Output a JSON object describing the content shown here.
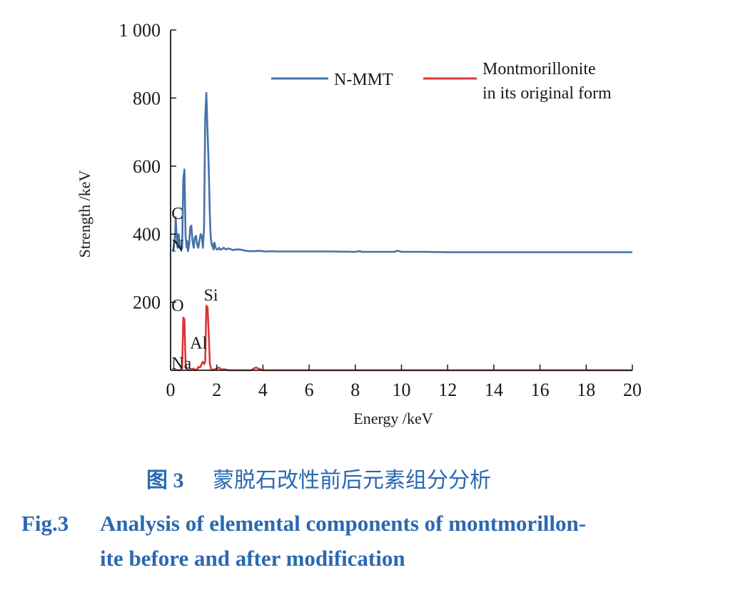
{
  "chart_data": {
    "type": "line",
    "title": "",
    "xlabel": "Energy /keV",
    "ylabel": "Strength /keV",
    "xlim": [
      0,
      20
    ],
    "ylim": [
      0,
      1000
    ],
    "x_ticks": [
      0,
      2,
      4,
      6,
      8,
      10,
      12,
      14,
      16,
      18,
      20
    ],
    "x_tick_labels": [
      "0",
      "2",
      "4",
      "6",
      "8",
      "10",
      "12",
      "14",
      "16",
      "18",
      "20"
    ],
    "y_ticks": [
      200,
      400,
      600,
      800,
      1000
    ],
    "y_tick_labels": [
      "200",
      "400",
      "600",
      "800",
      "1 000"
    ],
    "legend": {
      "position": "top-right",
      "entries": [
        {
          "label": "N-MMT",
          "color": "#4472a8"
        },
        {
          "label_line1": "Montmorillonite",
          "label_line2": "in its original form",
          "color": "#d93838"
        }
      ]
    },
    "series": [
      {
        "name": "N-MMT",
        "color": "#4472a8",
        "x": [
          0.1,
          0.15,
          0.2,
          0.22,
          0.25,
          0.28,
          0.3,
          0.35,
          0.4,
          0.45,
          0.5,
          0.55,
          0.6,
          0.65,
          0.7,
          0.72,
          0.75,
          0.78,
          0.8,
          0.85,
          0.9,
          0.95,
          1.0,
          1.05,
          1.1,
          1.15,
          1.2,
          1.25,
          1.3,
          1.35,
          1.4,
          1.45,
          1.5,
          1.55,
          1.6,
          1.65,
          1.7,
          1.72,
          1.74,
          1.76,
          1.78,
          1.8,
          1.82,
          1.84,
          1.86,
          1.88,
          1.9,
          1.95,
          2.0,
          2.05,
          2.1,
          2.15,
          2.2,
          2.3,
          2.4,
          2.5,
          2.6,
          2.7,
          2.8,
          3.0,
          3.2,
          3.4,
          3.5,
          3.6,
          3.8,
          4.0,
          4.1,
          4.2,
          4.4,
          4.6,
          5.0,
          6.0,
          7.0,
          8.0,
          8.2,
          8.3,
          8.4,
          9.0,
          9.7,
          9.8,
          9.9,
          10.0,
          11.0,
          12.0,
          14.0,
          16.0,
          18.0,
          20.0
        ],
        "values": [
          350,
          370,
          400,
          450,
          410,
          380,
          360,
          400,
          370,
          355,
          360,
          560,
          590,
          395,
          360,
          380,
          350,
          360,
          365,
          420,
          425,
          380,
          360,
          390,
          395,
          370,
          360,
          380,
          400,
          395,
          360,
          420,
          740,
          815,
          700,
          600,
          460,
          420,
          390,
          380,
          370,
          365,
          370,
          360,
          355,
          365,
          375,
          360,
          355,
          355,
          360,
          355,
          355,
          360,
          355,
          358,
          356,
          353,
          355,
          355,
          352,
          350,
          350,
          350,
          351,
          350,
          349,
          349,
          350,
          349,
          349,
          349,
          349,
          348,
          350,
          348,
          348,
          348,
          348,
          351,
          350,
          348,
          348,
          347,
          347,
          347,
          347,
          347
        ]
      },
      {
        "name": "Montmorillonite in its original form",
        "color": "#d93838",
        "x": [
          0.1,
          0.2,
          0.3,
          0.4,
          0.45,
          0.5,
          0.55,
          0.6,
          0.65,
          0.7,
          0.75,
          0.8,
          0.9,
          1.0,
          1.05,
          1.1,
          1.15,
          1.2,
          1.25,
          1.3,
          1.35,
          1.4,
          1.45,
          1.5,
          1.55,
          1.6,
          1.65,
          1.7,
          1.75,
          1.8,
          1.85,
          1.9,
          2.0,
          2.1,
          2.2,
          2.3,
          2.4,
          2.5,
          3.0,
          3.5,
          3.6,
          3.7,
          3.8,
          4.0,
          5.0,
          10.0,
          20.0
        ],
        "values": [
          0,
          2,
          0,
          0,
          3,
          5,
          155,
          150,
          20,
          5,
          0,
          0,
          2,
          5,
          0,
          2,
          3,
          10,
          8,
          10,
          20,
          25,
          18,
          25,
          190,
          185,
          110,
          20,
          5,
          0,
          2,
          3,
          5,
          8,
          2,
          3,
          2,
          0,
          0,
          0,
          5,
          8,
          5,
          0,
          0,
          0,
          0
        ]
      }
    ],
    "annotations": [
      {
        "text": "C",
        "x": 0.1,
        "y": 440
      },
      {
        "text": "N",
        "x": 0.1,
        "y": 345
      },
      {
        "text": "Si",
        "x": 1.5,
        "y": 200
      },
      {
        "text": "O",
        "x": 0.1,
        "y": 170
      },
      {
        "text": "Al",
        "x": 0.9,
        "y": 60
      },
      {
        "text": "Na",
        "x": 0.1,
        "y": 0
      }
    ]
  },
  "caption": {
    "cn_label": "图 3",
    "cn_text": "蒙脱石改性前后元素组分分析",
    "en_label": "Fig.3",
    "en_line1": "Analysis of elemental components of montmorillon-",
    "en_line2": "ite before and after modification"
  }
}
